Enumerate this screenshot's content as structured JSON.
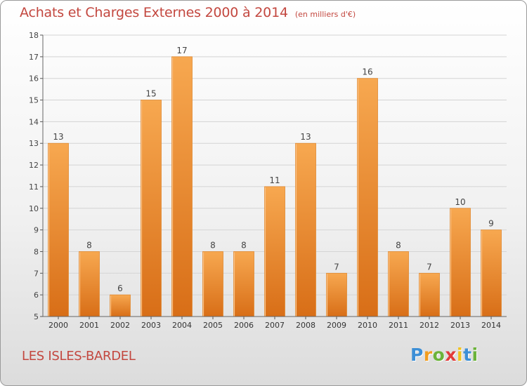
{
  "chart_data": {
    "type": "bar",
    "title": "Achats et Charges Externes 2000 à 2014",
    "unit_note": "(en milliers d'€)",
    "categories": [
      "2000",
      "2001",
      "2002",
      "2003",
      "2004",
      "2005",
      "2006",
      "2007",
      "2008",
      "2009",
      "2010",
      "2011",
      "2012",
      "2013",
      "2014"
    ],
    "values": [
      13,
      8,
      6,
      15,
      17,
      8,
      8,
      11,
      13,
      7,
      16,
      8,
      7,
      10,
      9
    ],
    "data_labels": [
      "13",
      "8",
      "6",
      "15",
      "17",
      "8",
      "8",
      "11",
      "13",
      "7",
      "16",
      "8",
      "7",
      "10",
      "9"
    ],
    "ylim": [
      5,
      18
    ],
    "yticks": [
      5,
      6,
      7,
      8,
      9,
      10,
      11,
      12,
      13,
      14,
      15,
      16,
      17,
      18
    ],
    "ytick_labels": [
      "5",
      "6",
      "7",
      "8",
      "9",
      "10",
      "11",
      "12",
      "13",
      "14",
      "15",
      "16",
      "17",
      "18"
    ],
    "grid": true,
    "bar_color": "#f0902f"
  },
  "footer": {
    "place": "LES ISLES-BARDEL",
    "logo_letters": [
      "P",
      "r",
      "o",
      "x",
      "i",
      "t",
      "i"
    ],
    "logo_colors": [
      "#3d8fd6",
      "#f29d1f",
      "#6bb33a",
      "#e23b3b",
      "#f2c31f",
      "#3d8fd6",
      "#6bb33a"
    ]
  }
}
